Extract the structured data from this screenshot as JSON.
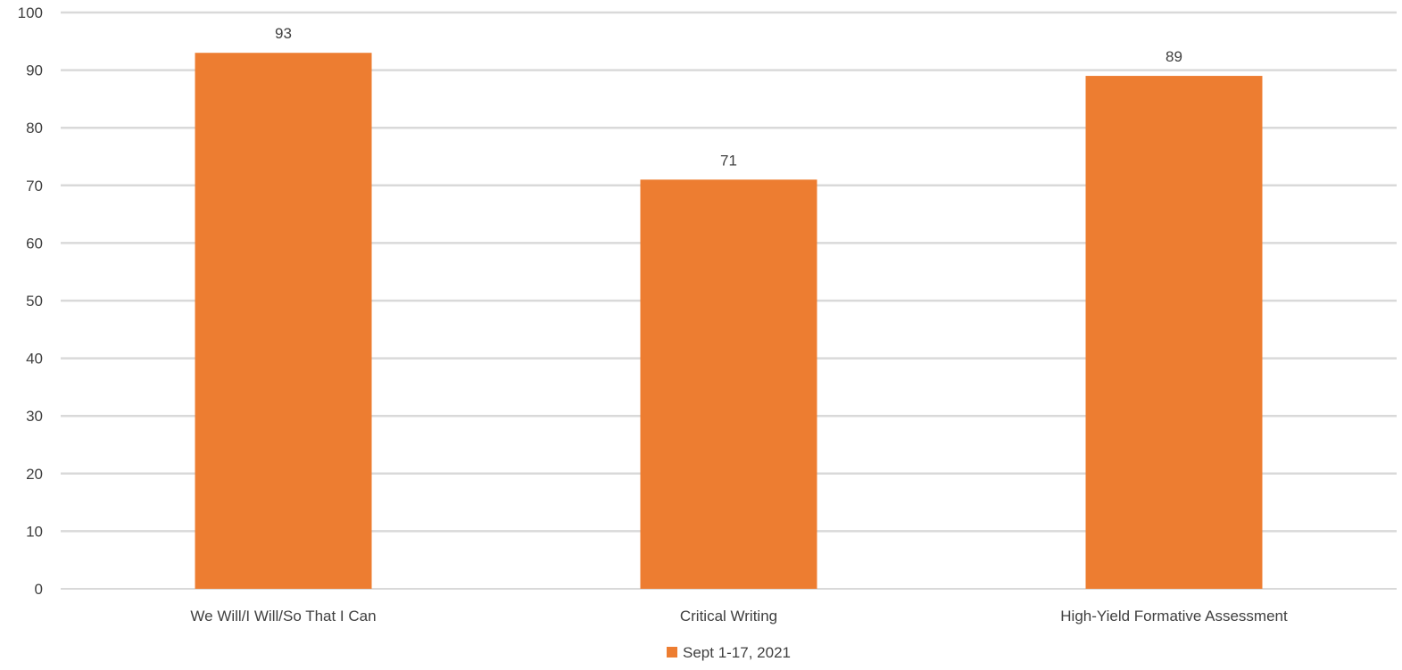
{
  "chart_data": {
    "type": "bar",
    "categories": [
      "We Will/I Will/So That I Can",
      "Critical Writing",
      "High-Yield Formative Assessment"
    ],
    "series": [
      {
        "name": "Sept 1-17, 2021",
        "values": [
          93,
          71,
          89
        ],
        "color": "#ED7D31"
      }
    ],
    "ylim": [
      0,
      100
    ],
    "yticks": [
      "0",
      "10",
      "20",
      "30",
      "40",
      "50",
      "60",
      "70",
      "80",
      "90",
      "100"
    ],
    "grid": true,
    "gridColor": "#D9D9D9",
    "data_labels": true,
    "legend": "bottom-center"
  }
}
